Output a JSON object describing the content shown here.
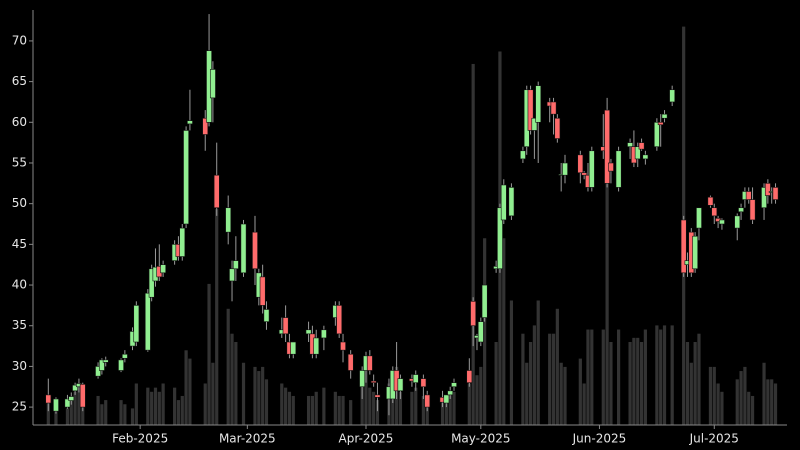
{
  "chart_data": {
    "type": "candlestick",
    "x": [
      7,
      9,
      12,
      13,
      14,
      15,
      16,
      20,
      21,
      22,
      26,
      27,
      29,
      30,
      33,
      34,
      35,
      36,
      37,
      40,
      41,
      42,
      43,
      44,
      48,
      49,
      50,
      51,
      54,
      55,
      56,
      58,
      61,
      62,
      63,
      64,
      68,
      69,
      70,
      71,
      75,
      76,
      77,
      79,
      82,
      83,
      84,
      86,
      89,
      90,
      91,
      92,
      93,
      96,
      97,
      98,
      99,
      102,
      103,
      105,
      106,
      110,
      111,
      112,
      113,
      117,
      118,
      119,
      120,
      121,
      124,
      125,
      126,
      128,
      131,
      132,
      133,
      134,
      135,
      138,
      139,
      140,
      141,
      142,
      146,
      147,
      148,
      149,
      152,
      153,
      154,
      156,
      159,
      160,
      161,
      162,
      163,
      166,
      167,
      168,
      170,
      173,
      174,
      175,
      176,
      177,
      180,
      181,
      182,
      183,
      187,
      188,
      189,
      190,
      191,
      194,
      195,
      196,
      197
    ],
    "open": [
      26.5,
      24.5,
      25,
      25.8,
      27,
      27.5,
      27.8,
      28.8,
      29.5,
      30.5,
      29.5,
      31,
      32.5,
      33,
      32,
      38.5,
      40.5,
      42.3,
      41.5,
      43,
      45,
      43.5,
      47.5,
      59.8,
      60.5,
      60,
      63,
      53.5,
      46.5,
      40.5,
      42,
      41.5,
      46.5,
      38.5,
      41,
      35.5,
      34,
      36,
      33,
      31.5,
      34,
      34,
      31.5,
      33.5,
      36,
      37.5,
      33,
      31.5,
      27.5,
      29.5,
      31.3,
      28.2,
      26.5,
      26,
      26,
      29.5,
      27,
      28.5,
      28,
      28.5,
      26.5,
      26.2,
      25.5,
      26.5,
      27.5,
      29.5,
      38,
      33.5,
      33,
      36,
      42,
      42,
      48,
      48.5,
      55.5,
      57,
      64,
      59,
      60,
      62.5,
      62.5,
      60.5,
      53.5,
      53.5,
      56,
      53.8,
      53.5,
      52,
      57,
      61.5,
      55,
      52,
      57,
      57,
      55.5,
      57.5,
      55.5,
      57,
      60,
      60.5,
      62.5,
      48,
      42.5,
      46.5,
      42,
      47,
      50.8,
      49.5,
      48.2,
      47.5,
      47,
      49,
      50.5,
      51.5,
      50.5,
      49.5,
      52.5,
      51.5,
      52
    ],
    "high": [
      28.5,
      26.2,
      26.5,
      26.8,
      28,
      28.5,
      28,
      30.5,
      31,
      31.2,
      31,
      32,
      34.8,
      38,
      39.5,
      42.5,
      44.5,
      45,
      43,
      45.5,
      46,
      47.5,
      59.5,
      64,
      61.5,
      73.3,
      67.5,
      57.5,
      51,
      43,
      46,
      48,
      48.5,
      42,
      42.5,
      38,
      36,
      37.5,
      34,
      33,
      35.5,
      35,
      34.5,
      35,
      38,
      38,
      34,
      32,
      30,
      31.8,
      32,
      29,
      28,
      28.5,
      30,
      33,
      29,
      29,
      29.5,
      29,
      27,
      27,
      26.5,
      27.5,
      28.5,
      31,
      38.5,
      34,
      36,
      40,
      43,
      50,
      53,
      52.5,
      57,
      64.5,
      64.5,
      60.5,
      65,
      63,
      63,
      61,
      55,
      56,
      56.5,
      54,
      55,
      57,
      61,
      63,
      55.5,
      57,
      58,
      59,
      57.5,
      58,
      56.5,
      60.5,
      61,
      61.5,
      64.5,
      48.5,
      44,
      47,
      46.5,
      49.5,
      51,
      50,
      48.5,
      48.2,
      48.8,
      50,
      52,
      52,
      52,
      52.5,
      53,
      52,
      52.5
    ],
    "low": [
      24.5,
      24.2,
      24.8,
      25.3,
      26.5,
      26.8,
      24.5,
      28.5,
      29,
      30,
      29.3,
      30.5,
      32,
      32.5,
      31.8,
      38,
      39.8,
      40.5,
      41,
      42.5,
      43,
      43,
      47,
      59,
      56.5,
      59.5,
      60,
      48.5,
      45,
      38,
      40.5,
      41,
      40,
      37.5,
      36.5,
      34.5,
      33.5,
      33,
      31,
      31,
      33,
      31,
      31,
      32,
      35,
      33.5,
      30.5,
      28.5,
      26,
      28,
      29,
      27.5,
      24.5,
      24,
      25.5,
      26,
      26,
      27.5,
      27,
      26,
      24.5,
      25,
      25,
      26,
      27,
      27.5,
      32.5,
      32,
      32.5,
      35.5,
      41.5,
      41.5,
      47.5,
      48,
      55,
      56,
      58.5,
      55.5,
      55,
      60,
      58.5,
      57.5,
      51.5,
      52.5,
      52.5,
      53,
      51.5,
      51.5,
      55.5,
      52,
      52.5,
      51.5,
      55.5,
      54.5,
      54.5,
      56.5,
      54.8,
      56.5,
      57,
      60,
      62,
      41,
      41,
      41,
      41.5,
      45.5,
      49.5,
      47.5,
      47,
      46.8,
      45.5,
      48,
      49.5,
      50,
      47.5,
      48,
      50,
      50,
      50
    ],
    "close": [
      25.5,
      26,
      26,
      26.3,
      27.7,
      27.9,
      25,
      30,
      30.8,
      30.8,
      30.8,
      31.5,
      34.3,
      37.5,
      39,
      42,
      42.2,
      41,
      42.5,
      45,
      43.5,
      47,
      59,
      60.2,
      58.5,
      68.8,
      66.5,
      49.5,
      49.5,
      42,
      43,
      47.5,
      42,
      41.5,
      37.5,
      37,
      34.5,
      34,
      31.5,
      33,
      34.5,
      31.5,
      33.5,
      34.5,
      37.5,
      34,
      32,
      29.5,
      29.5,
      31.3,
      29.5,
      28,
      26.2,
      27.5,
      29.5,
      27,
      28.5,
      28.2,
      29,
      27.5,
      25,
      25.6,
      26.5,
      27,
      28,
      28,
      35,
      33.8,
      35.5,
      40,
      42.3,
      49.5,
      52.3,
      52,
      56.5,
      64,
      59,
      60.5,
      64.5,
      62,
      61,
      58,
      53.6,
      55,
      53.8,
      53.5,
      52,
      56.5,
      56.5,
      52.5,
      54,
      56.5,
      57.5,
      55,
      57,
      56.7,
      56,
      60,
      59.7,
      61,
      64,
      41.5,
      43,
      41.5,
      46,
      49.5,
      49.8,
      48.5,
      47.8,
      48,
      48.5,
      49.5,
      51.5,
      50.5,
      48,
      52,
      51,
      51.5,
      50.5
    ],
    "volume": [
      7,
      5,
      4,
      6,
      8,
      9,
      6,
      7,
      5,
      6,
      6,
      5,
      4,
      10,
      9,
      8,
      9,
      8,
      10,
      9,
      6,
      7,
      18,
      16,
      10,
      34,
      15,
      52,
      28,
      22,
      20,
      15,
      14,
      13,
      14,
      11,
      10,
      9,
      8,
      7,
      7,
      7,
      8,
      9,
      8,
      7,
      7,
      6,
      11,
      15,
      9,
      8,
      6,
      10,
      12,
      14,
      8,
      8,
      9,
      7,
      6,
      6,
      7,
      8,
      8,
      10,
      87,
      12,
      14,
      45,
      20,
      90,
      45,
      30,
      22,
      15,
      20,
      24,
      30,
      22,
      22,
      28,
      15,
      14,
      16,
      10,
      23,
      23,
      23,
      73,
      20,
      23,
      20,
      21,
      21,
      20,
      23,
      24,
      23,
      24,
      24,
      96,
      20,
      15,
      20,
      22,
      14,
      14,
      10,
      8,
      11,
      13,
      14,
      8,
      7,
      15,
      11,
      11,
      10
    ],
    "volume_lim": [
      0,
      100
    ],
    "xlim": [
      3,
      200
    ],
    "xticks": [
      {
        "value": 31,
        "label": "Feb-2025"
      },
      {
        "value": 59,
        "label": "Mar-2025"
      },
      {
        "value": 90,
        "label": "Apr-2025"
      },
      {
        "value": 120,
        "label": "May-2025"
      },
      {
        "value": 151,
        "label": "Jun-2025"
      },
      {
        "value": 181,
        "label": "Jul-2025"
      }
    ],
    "ylim": [
      22.8,
      73.8
    ],
    "yticks": [
      25,
      30,
      35,
      40,
      45,
      50,
      55,
      60,
      65,
      70
    ],
    "up_color": "#90ee90",
    "down_color": "#ff6b6b",
    "wick_color": "#9a9a9a",
    "volume_color": "#333333"
  }
}
